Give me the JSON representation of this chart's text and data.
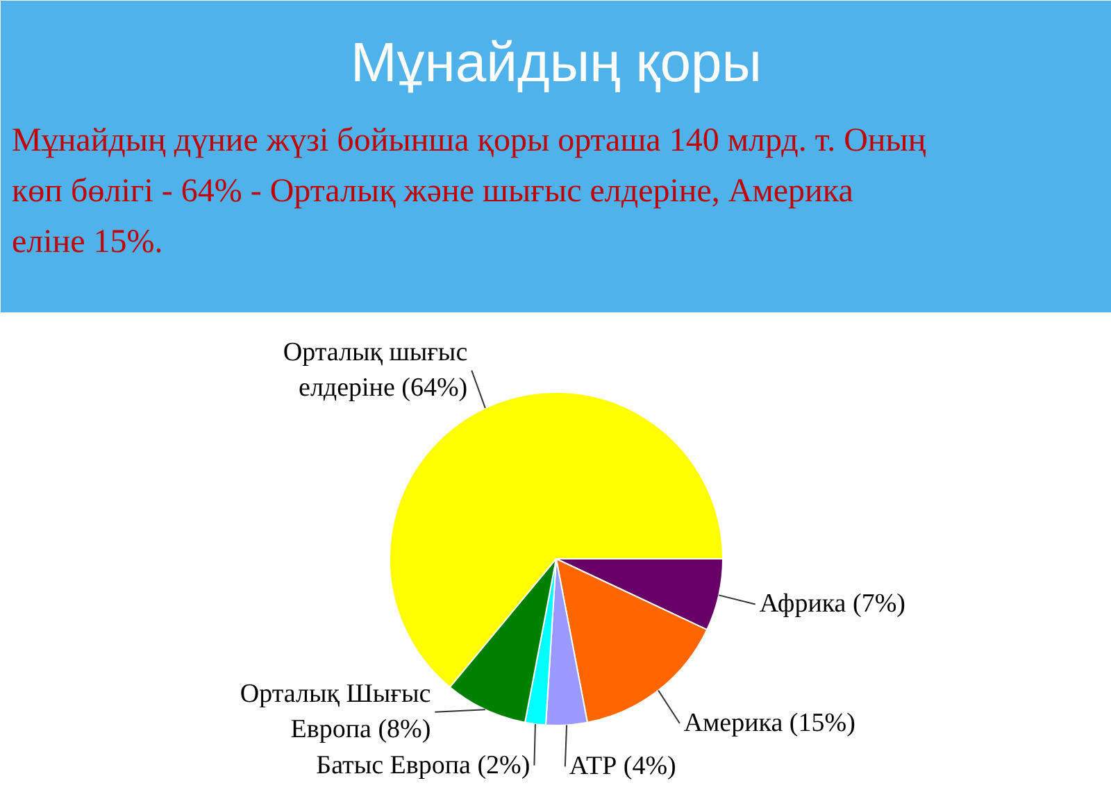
{
  "chart_data": {
    "type": "pie",
    "title": "Мұнайдың қоры",
    "subtitle": "Мұнайдың дүние жүзі бойынша қоры орташа 140 млрд. т. Оның көп бөлігі - 64% - Орталық және шығыс елдеріне, Америка еліне 15%.",
    "categories": [
      "Орталық шығыс елдеріне",
      "Африка",
      "Америка",
      "АТР",
      "Батыс Европа",
      "Орталық Шығыс Европа"
    ],
    "values": [
      64,
      7,
      15,
      4,
      2,
      8
    ],
    "value_labels": [
      "(64%)",
      "(7%)",
      "(15%)",
      "(4%)",
      "(2%)",
      "(8%)"
    ],
    "colors": [
      "#ffff00",
      "#660066",
      "#ff6600",
      "#9999ff",
      "#00ffff",
      "#008000"
    ]
  }
}
